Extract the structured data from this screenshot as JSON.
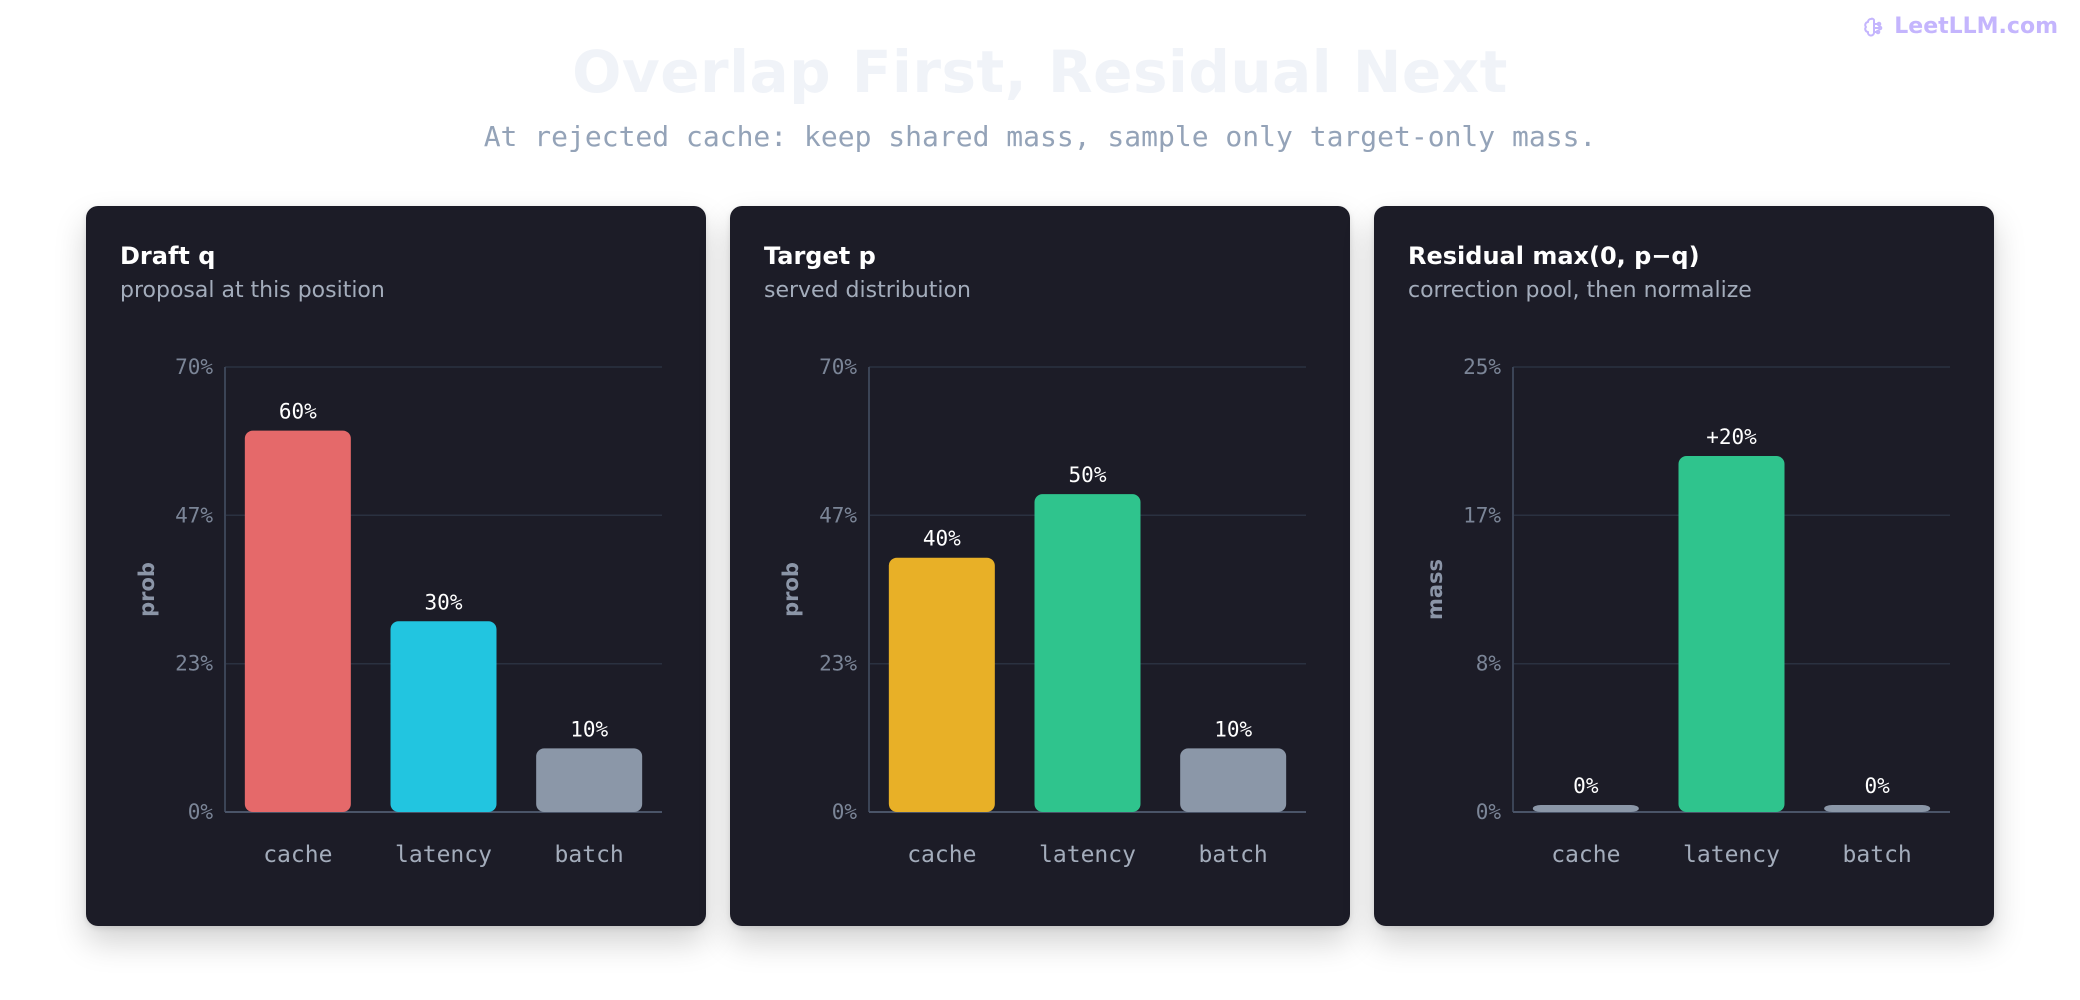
{
  "brand": {
    "name": "LeetLLM.com",
    "icon": "brain-icon",
    "color": "#c4b5fd"
  },
  "header": {
    "title": "Overlap First, Residual Next",
    "subtitle": "At rejected cache: keep shared mass, sample only target-only mass."
  },
  "panels": [
    {
      "title": "Draft q",
      "subtitle": "proposal at this position"
    },
    {
      "title": "Target p",
      "subtitle": "served distribution"
    },
    {
      "title": "Residual max(0, p−q)",
      "subtitle": "correction pool, then normalize"
    }
  ],
  "chart_data": [
    {
      "type": "bar",
      "categories": [
        "cache",
        "latency",
        "batch"
      ],
      "values": [
        60,
        30,
        10
      ],
      "value_labels": [
        "60%",
        "30%",
        "10%"
      ],
      "colors": [
        "#e5696a",
        "#22c5e0",
        "#8b97a8"
      ],
      "ylabel": "prob",
      "ylim": [
        0,
        70
      ],
      "yticks": [
        0,
        23.33,
        46.67,
        70
      ],
      "ytick_labels": [
        "0%",
        "23%",
        "47%",
        "70%"
      ],
      "grid": true
    },
    {
      "type": "bar",
      "categories": [
        "cache",
        "latency",
        "batch"
      ],
      "values": [
        40,
        50,
        10
      ],
      "value_labels": [
        "40%",
        "50%",
        "10%"
      ],
      "colors": [
        "#e8b027",
        "#2fc48d",
        "#8b97a8"
      ],
      "ylabel": "prob",
      "ylim": [
        0,
        70
      ],
      "yticks": [
        0,
        23.33,
        46.67,
        70
      ],
      "ytick_labels": [
        "0%",
        "23%",
        "47%",
        "70%"
      ],
      "grid": true
    },
    {
      "type": "bar",
      "categories": [
        "cache",
        "latency",
        "batch"
      ],
      "values": [
        0,
        20,
        0
      ],
      "value_labels": [
        "0%",
        "+20%",
        "0%"
      ],
      "colors": [
        "#8b97a8",
        "#2fc48d",
        "#8b97a8"
      ],
      "ylabel": "mass",
      "ylim": [
        0,
        25
      ],
      "yticks": [
        0,
        8.33,
        16.67,
        25
      ],
      "ytick_labels": [
        "0%",
        "8%",
        "17%",
        "25%"
      ],
      "grid": true
    }
  ]
}
